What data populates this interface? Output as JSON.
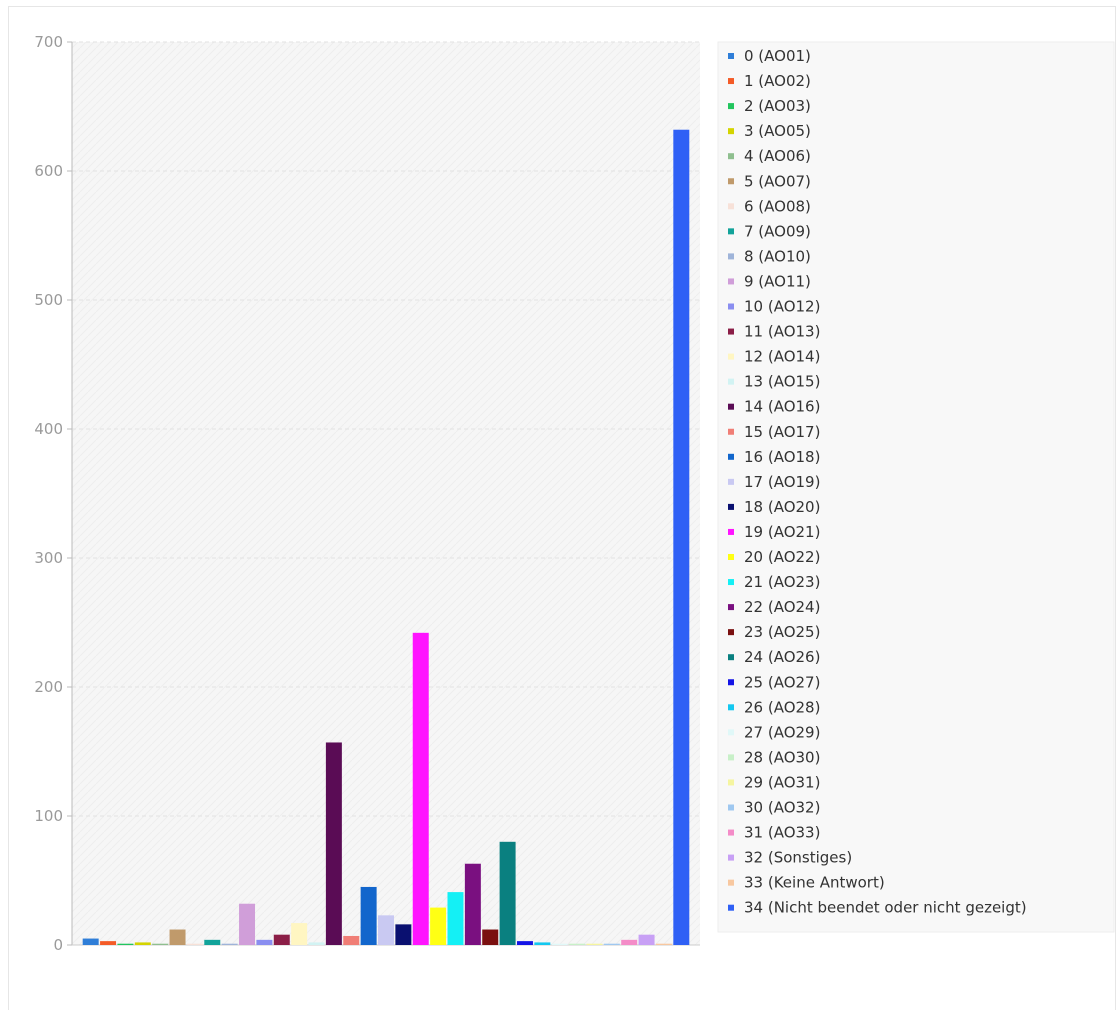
{
  "chart_data": {
    "type": "bar",
    "title": "",
    "xlabel": "",
    "ylabel": "",
    "ylim": [
      0,
      700
    ],
    "yticks": [
      0,
      100,
      200,
      300,
      400,
      500,
      600,
      700
    ],
    "grid": true,
    "legend_position": "right",
    "series": [
      {
        "name": "0 (AO01)",
        "value": 5,
        "color": "#2f7ed8"
      },
      {
        "name": "1 (AO02)",
        "value": 3,
        "color": "#f45b27"
      },
      {
        "name": "2 (AO03)",
        "value": 1,
        "color": "#22c55e"
      },
      {
        "name": "3 (AO05)",
        "value": 2,
        "color": "#d4d400"
      },
      {
        "name": "4 (AO06)",
        "value": 1,
        "color": "#8fbf8f"
      },
      {
        "name": "5 (AO07)",
        "value": 12,
        "color": "#c09a6b"
      },
      {
        "name": "6 (AO08)",
        "value": 1,
        "color": "#f7e1d8"
      },
      {
        "name": "7 (AO09)",
        "value": 4,
        "color": "#12a39a"
      },
      {
        "name": "8 (AO10)",
        "value": 1,
        "color": "#9fb4d9"
      },
      {
        "name": "9 (AO11)",
        "value": 32,
        "color": "#d09ed9"
      },
      {
        "name": "10 (AO12)",
        "value": 4,
        "color": "#8a8ef0"
      },
      {
        "name": "11 (AO13)",
        "value": 8,
        "color": "#8b1e47"
      },
      {
        "name": "12 (AO14)",
        "value": 17,
        "color": "#fff6c2"
      },
      {
        "name": "13 (AO15)",
        "value": 2,
        "color": "#d2f3f3"
      },
      {
        "name": "14 (AO16)",
        "value": 157,
        "color": "#5a0c55"
      },
      {
        "name": "15 (AO17)",
        "value": 7,
        "color": "#f07e76"
      },
      {
        "name": "16 (AO18)",
        "value": 45,
        "color": "#1266cc"
      },
      {
        "name": "17 (AO19)",
        "value": 23,
        "color": "#c9c9f2"
      },
      {
        "name": "18 (AO20)",
        "value": 16,
        "color": "#0a1070"
      },
      {
        "name": "19 (AO21)",
        "value": 242,
        "color": "#ff14ff"
      },
      {
        "name": "20 (AO22)",
        "value": 29,
        "color": "#ffff14"
      },
      {
        "name": "21 (AO23)",
        "value": 41,
        "color": "#14f0f5"
      },
      {
        "name": "22 (AO24)",
        "value": 63,
        "color": "#7a1080"
      },
      {
        "name": "23 (AO25)",
        "value": 12,
        "color": "#7a1010"
      },
      {
        "name": "24 (AO26)",
        "value": 80,
        "color": "#0a8080"
      },
      {
        "name": "25 (AO27)",
        "value": 3,
        "color": "#1414e6"
      },
      {
        "name": "26 (AO28)",
        "value": 2,
        "color": "#14c8f0"
      },
      {
        "name": "27 (AO29)",
        "value": 1,
        "color": "#e0f8f8"
      },
      {
        "name": "28 (AO30)",
        "value": 1,
        "color": "#c8f0c8"
      },
      {
        "name": "29 (AO31)",
        "value": 1,
        "color": "#f5f5a0"
      },
      {
        "name": "30 (AO32)",
        "value": 1,
        "color": "#9fc8f0"
      },
      {
        "name": "31 (AO33)",
        "value": 4,
        "color": "#f48cc8"
      },
      {
        "name": "32 (Sonstiges)",
        "value": 8,
        "color": "#c8a0f5"
      },
      {
        "name": "33 (Keine Antwort)",
        "value": 1,
        "color": "#f8c8a0"
      },
      {
        "name": "34 (Nicht beendet oder nicht gezeigt)",
        "value": 632,
        "color": "#2f60f5"
      }
    ]
  }
}
